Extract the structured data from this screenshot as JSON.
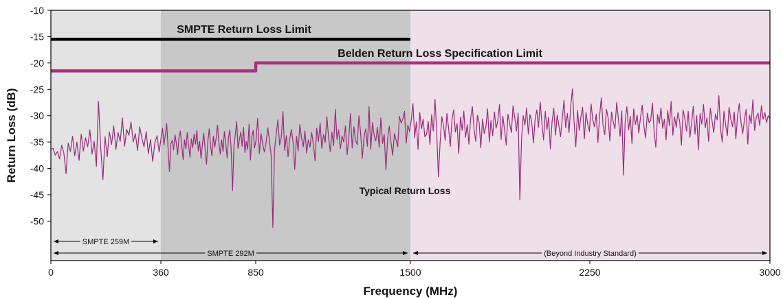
{
  "chart_data": {
    "type": "line",
    "xlabel": "Frequency (MHz)",
    "ylabel": "Return Loss (dB)",
    "x_ticks": [
      {
        "value": 0,
        "label": "0"
      },
      {
        "value": 360,
        "label": "360"
      },
      {
        "value": 850,
        "label": "850"
      },
      {
        "value": 1500,
        "label": "1500"
      },
      {
        "value": 2250,
        "label": "2250"
      },
      {
        "value": 3000,
        "label": "3000"
      }
    ],
    "y_ticks": [
      -10,
      -15,
      -20,
      -25,
      -30,
      -35,
      -40,
      -45,
      -50
    ],
    "ylim": [
      -57.5,
      -10
    ],
    "x_scale": "piecewise",
    "grid": false,
    "regions": [
      {
        "x": [
          0,
          360
        ],
        "color": "#e3e3e3"
      },
      {
        "x": [
          360,
          1500
        ],
        "color": "#c8c8c8"
      },
      {
        "x": [
          1500,
          3000
        ],
        "color": "#eedfe9"
      }
    ],
    "bands": [
      {
        "label": "SMPTE 259M",
        "x": [
          0,
          360
        ],
        "row": 1
      },
      {
        "label": "SMPTE 292M",
        "x": [
          0,
          1500
        ],
        "row": 2
      },
      {
        "label": "(Beyond Industry Standard)",
        "x": [
          1500,
          3000
        ],
        "row": 2
      }
    ],
    "series": [
      {
        "name": "SMPTE Return Loss Limit",
        "color": "#000000",
        "points": [
          [
            0,
            -15.5
          ],
          [
            1500,
            -15.5
          ]
        ]
      },
      {
        "name": "Belden Return Loss Specification Limit",
        "color": "#a8307f",
        "points": [
          [
            0,
            -21.5
          ],
          [
            850,
            -21.5
          ],
          [
            850,
            -20
          ],
          [
            3000,
            -20
          ]
        ]
      },
      {
        "name": "Typical Return Loss",
        "color": "#9a2a7a",
        "x_range": [
          0,
          3000
        ],
        "y": [
          -36.4,
          -36.2,
          -37.5,
          -36.8,
          -38.2,
          -35.6,
          -37.1,
          -41.0,
          -35.2,
          -36.8,
          -33.9,
          -37.6,
          -35.0,
          -38.5,
          -33.5,
          -36.7,
          -34.2,
          -35.9,
          -32.7,
          -37.3,
          -34.8,
          -39.6,
          -27.3,
          -36.1,
          -42.2,
          -34.0,
          -37.8,
          -33.1,
          -35.5,
          -31.9,
          -36.4,
          -33.2,
          -34.9,
          -30.4,
          -35.8,
          -32.6,
          -33.7,
          -31.2,
          -35.0,
          -33.4,
          -36.6,
          -32.1,
          -34.3,
          -35.9,
          -33.0,
          -37.2,
          -34.5,
          -38.7,
          -35.1,
          -33.8,
          -36.9,
          -34.0,
          -32.4,
          -35.6,
          -33.7,
          -31.5,
          -36.2,
          -40.6,
          -35.3,
          -34.7,
          -36.5,
          -33.6,
          -35.2,
          -37.4,
          -34.1,
          -32.9,
          -35.8,
          -38.3,
          -34.6,
          -36.3,
          -33.2,
          -35.7,
          -37.9,
          -34.4,
          -36.1,
          -33.5,
          -35.4,
          -32.8,
          -36.7,
          -34.9,
          -38.1,
          -35.5,
          -33.3,
          -36.4,
          -39.2,
          -34.8,
          -32.5,
          -35.9,
          -37.6,
          -33.9,
          -36.0,
          -34.3,
          -31.8,
          -35.1,
          -37.3,
          -34.6,
          -36.8,
          -33.0,
          -35.3,
          -38.0,
          -34.2,
          -32.7,
          -36.5,
          -44.2,
          -35.7,
          -33.6,
          -31.1,
          -36.2,
          -34.5,
          -33.1,
          -35.8,
          -32.2,
          -37.0,
          -34.9,
          -36.4,
          -31.6,
          -38.4,
          -34.0,
          -32.8,
          -36.1,
          -34.7,
          -30.5,
          -37.2,
          -33.4,
          -35.5,
          -36.9,
          -35.0,
          -32.3,
          -34.8,
          -37.7,
          -51.2,
          -36.3,
          -33.5,
          -30.8,
          -35.6,
          -34.1,
          -29.2,
          -36.6,
          -33.8,
          -37.8,
          -34.4,
          -32.6,
          -35.2,
          -40.2,
          -33.9,
          -36.7,
          -31.7,
          -34.3,
          -35.9,
          -32.9,
          -37.1,
          -34.6,
          -36.0,
          -33.2,
          -35.4,
          -38.6,
          -32.4,
          -34.9,
          -31.4,
          -36.2,
          -33.6,
          -35.1,
          -30.2,
          -34.0,
          -36.8,
          -33.1,
          -35.7,
          -28.8,
          -34.5,
          -32.7,
          -36.3,
          -33.8,
          -35.0,
          -31.9,
          -37.4,
          -34.2,
          -29.6,
          -36.1,
          -32.1,
          -34.7,
          -35.5,
          -30.0,
          -33.3,
          -38.1,
          -34.1,
          -32.5,
          -35.8,
          -28.3,
          -36.4,
          -31.3,
          -33.7,
          -34.8,
          -32.2,
          -36.0,
          -30.4,
          -35.3,
          -33.5,
          -40.3,
          -34.4,
          -32.0,
          -35.1,
          -37.5,
          -33.4,
          -34.6,
          -35.9,
          -30.1,
          -31.4,
          -30.6,
          -29.2,
          -35.2,
          -31.8,
          -33.0,
          -30.9,
          -27.7,
          -34.2,
          -31.2,
          -36.4,
          -29.4,
          -32.5,
          -30.7,
          -34.0,
          -33.6,
          -31.1,
          -35.5,
          -29.8,
          -32.9,
          -26.9,
          -33.3,
          -41.6,
          -35.1,
          -30.2,
          -31.9,
          -34.7,
          -29.6,
          -32.3,
          -35.8,
          -30.8,
          -28.9,
          -33.1,
          -31.5,
          -37.2,
          -30.3,
          -32.8,
          -29.1,
          -34.1,
          -31.7,
          -35.4,
          -30.5,
          -28.3,
          -32.6,
          -34.9,
          -29.9,
          -31.3,
          -36.1,
          -30.6,
          -33.4,
          -32.1,
          -28.7,
          -35.0,
          -30.9,
          -33.8,
          -29.3,
          -32.4,
          -31.0,
          -27.9,
          -34.5,
          -30.1,
          -32.7,
          -35.6,
          -29.7,
          -31.6,
          -33.2,
          -28.1,
          -30.4,
          -32.9,
          -29.5,
          -46.0,
          -34.3,
          -30.0,
          -31.8,
          -28.5,
          -33.5,
          -29.8,
          -31.2,
          -35.2,
          -30.7,
          -28.9,
          -32.2,
          -27.4,
          -31.5,
          -34.6,
          -29.2,
          -32.6,
          -30.3,
          -36.3,
          -31.1,
          -28.6,
          -33.7,
          -29.9,
          -31.9,
          -34.0,
          -30.5,
          -27.1,
          -32.3,
          -29.6,
          -33.2,
          -28.2,
          -24.9,
          -31.4,
          -35.9,
          -29.0,
          -32.8,
          -30.2,
          -28.4,
          -34.4,
          -29.4,
          -31.6,
          -33.0,
          -27.8,
          -30.8,
          -32.1,
          -29.7,
          -35.1,
          -30.0,
          -26.6,
          -31.8,
          -33.6,
          -28.8,
          -30.4,
          -34.8,
          -29.3,
          -31.2,
          -32.5,
          -27.5,
          -30.6,
          -33.9,
          -29.1,
          -41.3,
          -31.0,
          -28.3,
          -32.7,
          -30.1,
          -35.3,
          -28.7,
          -31.7,
          -29.9,
          -33.3,
          -30.3,
          -28.0,
          -32.0,
          -34.2,
          -29.5,
          -31.3,
          -30.9,
          -27.6,
          -33.1,
          -36.0,
          -29.8,
          -31.5,
          -28.5,
          -32.4,
          -30.7,
          -34.6,
          -29.0,
          -31.9,
          -27.3,
          -33.7,
          -30.2,
          -32.2,
          -29.4,
          -31.1,
          -35.6,
          -28.9,
          -30.5,
          -32.9,
          -29.2,
          -34.1,
          -31.4,
          -28.2,
          -33.5,
          -30.0,
          -36.5,
          -29.6,
          -31.6,
          -27.9,
          -32.3,
          -30.4,
          -34.9,
          -28.6,
          -31.0,
          -33.2,
          -29.7,
          -30.8,
          -26.2,
          -32.6,
          -35.0,
          -29.1,
          -31.8,
          -33.8,
          -28.4,
          -30.6,
          -32.1,
          -29.3,
          -34.4,
          -30.1,
          -27.7,
          -31.2,
          -33.4,
          -30.9,
          -28.8,
          -35.4,
          -29.9,
          -31.5,
          -27.0,
          -32.8,
          -30.3,
          -29.5,
          -31.9,
          -28.1,
          -30.7,
          -29.4,
          -31.3,
          -30.0,
          -30.6
        ]
      }
    ]
  }
}
